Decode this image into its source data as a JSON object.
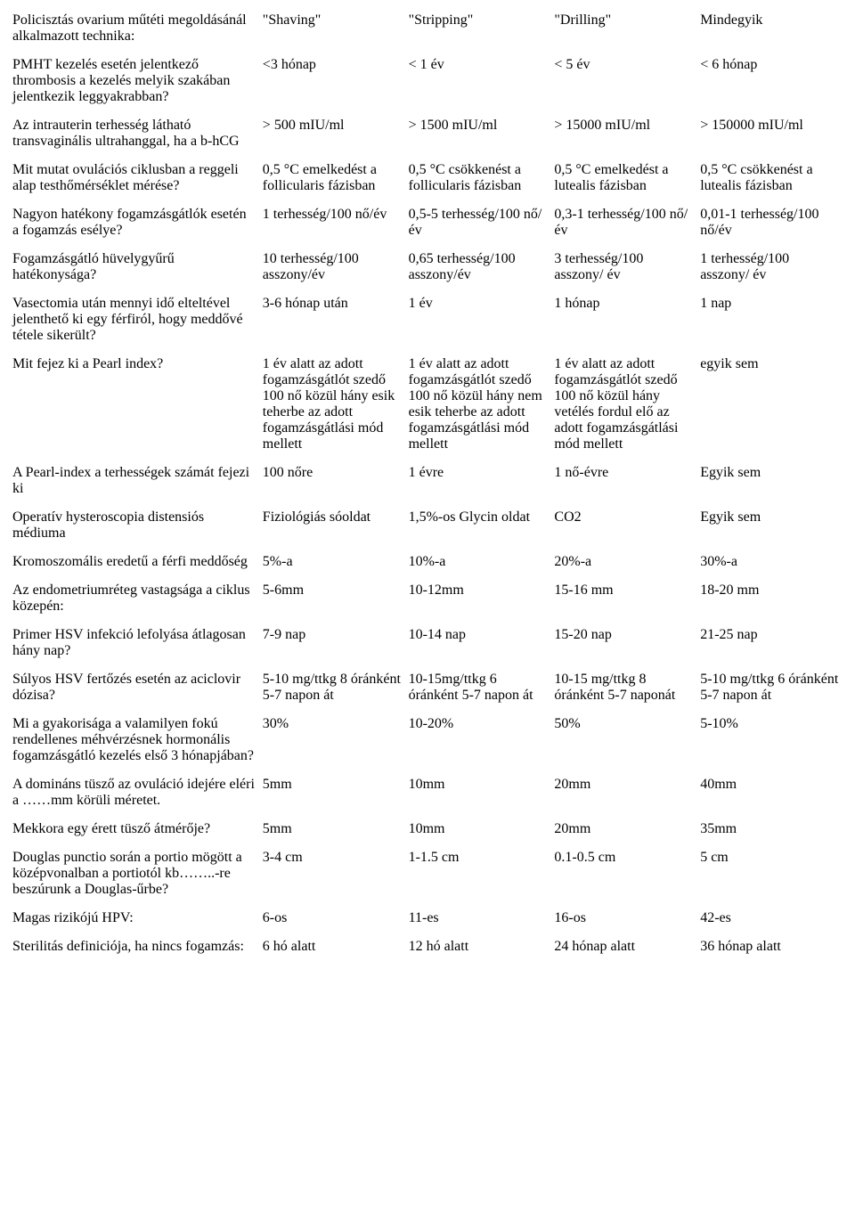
{
  "table": {
    "rows": [
      {
        "q": "Policisztás ovarium műtéti megoldásánál alkalmazott technika:",
        "a1": "\"Shaving\"",
        "a2": "\"Stripping\"",
        "a3": "\"Drilling\"",
        "a4": "Mindegyik"
      },
      {
        "q": " PMHT kezelés esetén jelentkező thrombosis a kezelés melyik szakában jelentkezik leggyakrabban?",
        "a1": "<3 hónap",
        "a2": "< 1 év",
        "a3": "< 5 év",
        "a4": "< 6 hónap"
      },
      {
        "q": "Az intrauterin terhesség látható transvaginális ultrahanggal, ha a b-hCG",
        "a1": "> 500 mIU/ml",
        "a2": "> 1500 mIU/ml",
        "a3": "> 15000 mIU/ml",
        "a4": "> 150000 mIU/ml"
      },
      {
        "q": "Mit mutat ovulációs ciklusban a reggeli alap testhőmérséklet mérése?",
        "a1": "0,5 °C emelkedést a follicularis fázisban",
        "a2": "0,5 °C csökkenést a follicularis fázisban",
        "a3": "0,5 °C emelkedést a lutealis fázisban",
        "a4": "0,5 °C csökkenést a lutealis fázisban"
      },
      {
        "q": "Nagyon hatékony fogamzásgátlók esetén a fogamzás esélye?",
        "a1": "1 terhesség/100 nő/év",
        "a2": "0,5-5 terhesség/100 nő/év",
        "a3": "0,3-1 terhesség/100 nő/év",
        "a4": "0,01-1 terhesség/100 nő/év"
      },
      {
        "q": "Fogamzásgátló hüvelygyűrű hatékonysága?",
        "a1": "10 terhesség/100 asszony/év",
        "a2": "0,65 terhesség/100 asszony/év",
        "a3": "3 terhesség/100 asszony/ év",
        "a4": "1 terhesség/100 asszony/ év"
      },
      {
        "q": "Vasectomia után mennyi idő elteltével jelenthető ki egy férfiról, hogy meddővé tétele sikerült?",
        "a1": "3-6 hónap után",
        "a2": "1 év",
        "a3": "1 hónap",
        "a4": "1 nap"
      },
      {
        "q": "Mit fejez ki a Pearl index?",
        "a1": "1 év alatt az adott fogamzásgátlót szedő 100 nő közül hány esik teherbe az adott fogamzásgátlási mód mellett",
        "a2": "1 év alatt az adott fogamzásgátlót szedő 100 nő közül hány nem esik teherbe az adott fogamzásgátlási mód mellett",
        "a3": "1 év alatt az adott fogamzásgátlót szedő 100 nő közül hány vetélés fordul elő az adott fogamzásgátlási mód mellett",
        "a4": "egyik sem"
      },
      {
        "q": "A Pearl-index a terhességek számát fejezi ki",
        "a1": "100 nőre",
        "a2": "1 évre",
        "a3": "1 nő-évre",
        "a4": "Egyik sem"
      },
      {
        "q": "Operatív hysteroscopia distensiós médiuma",
        "a1": "Fiziológiás sóoldat",
        "a2": "1,5%-os Glycin oldat",
        "a3": "CO2",
        "a4": "Egyik sem"
      },
      {
        "q": "Kromoszomális eredetű a férfi meddőség",
        "a1": "5%-a",
        "a2": "10%-a",
        "a3": "20%-a",
        "a4": "30%-a"
      },
      {
        "q": "Az endometriumréteg vastagsága a ciklus közepén:",
        "a1": "5-6mm",
        "a2": "10-12mm",
        "a3": "15-16 mm",
        "a4": "18-20 mm"
      },
      {
        "q": "Primer  HSV infekció lefolyása átlagosan hány nap?",
        "a1": "7-9 nap",
        "a2": "10-14 nap",
        "a3": "15-20 nap",
        "a4": "21-25 nap"
      },
      {
        "q": "Súlyos HSV fertőzés esetén az aciclovir dózisa?",
        "a1": "5-10 mg/ttkg 8 óránként 5-7 napon át",
        "a2": "10-15mg/ttkg 6 óránként 5-7 napon át",
        "a3": "10-15 mg/ttkg 8 óránként 5-7 naponát",
        "a4": "5-10 mg/ttkg 6 óránként 5-7 napon át"
      },
      {
        "q": "Mi a gyakorisága a valamilyen fokú rendellenes méhvérzésnek hormonális fogamzásgátló kezelés első 3 hónapjában?",
        "a1": "30%",
        "a2": "10-20%",
        "a3": "50%",
        "a4": "5-10%"
      },
      {
        "q": "A domináns tüsző az ovuláció idejére eléri a ……mm körüli méretet.",
        "a1": "5mm",
        "a2": "10mm",
        "a3": "20mm",
        "a4": "40mm"
      },
      {
        "q": "Mekkora egy érett tüsző átmérője?",
        "a1": "5mm",
        "a2": "10mm",
        "a3": "20mm",
        "a4": "35mm"
      },
      {
        "q": "Douglas punctio során a portio mögött a középvonalban a portiotól kb……..-re beszúrunk a Douglas-űrbe?",
        "a1": "3-4 cm",
        "a2": "1-1.5 cm",
        "a3": "0.1-0.5 cm",
        "a4": "5 cm"
      },
      {
        "q": "Magas rizikójú HPV:",
        "a1": "6-os",
        "a2": "11-es",
        "a3": "16-os",
        "a4": "42-es"
      },
      {
        "q": "Sterilitás definiciója, ha nincs fogamzás:",
        "a1": "6 hó alatt",
        "a2": "12 hó alatt",
        "a3": "24 hónap alatt",
        "a4": "36 hónap alatt"
      }
    ]
  }
}
